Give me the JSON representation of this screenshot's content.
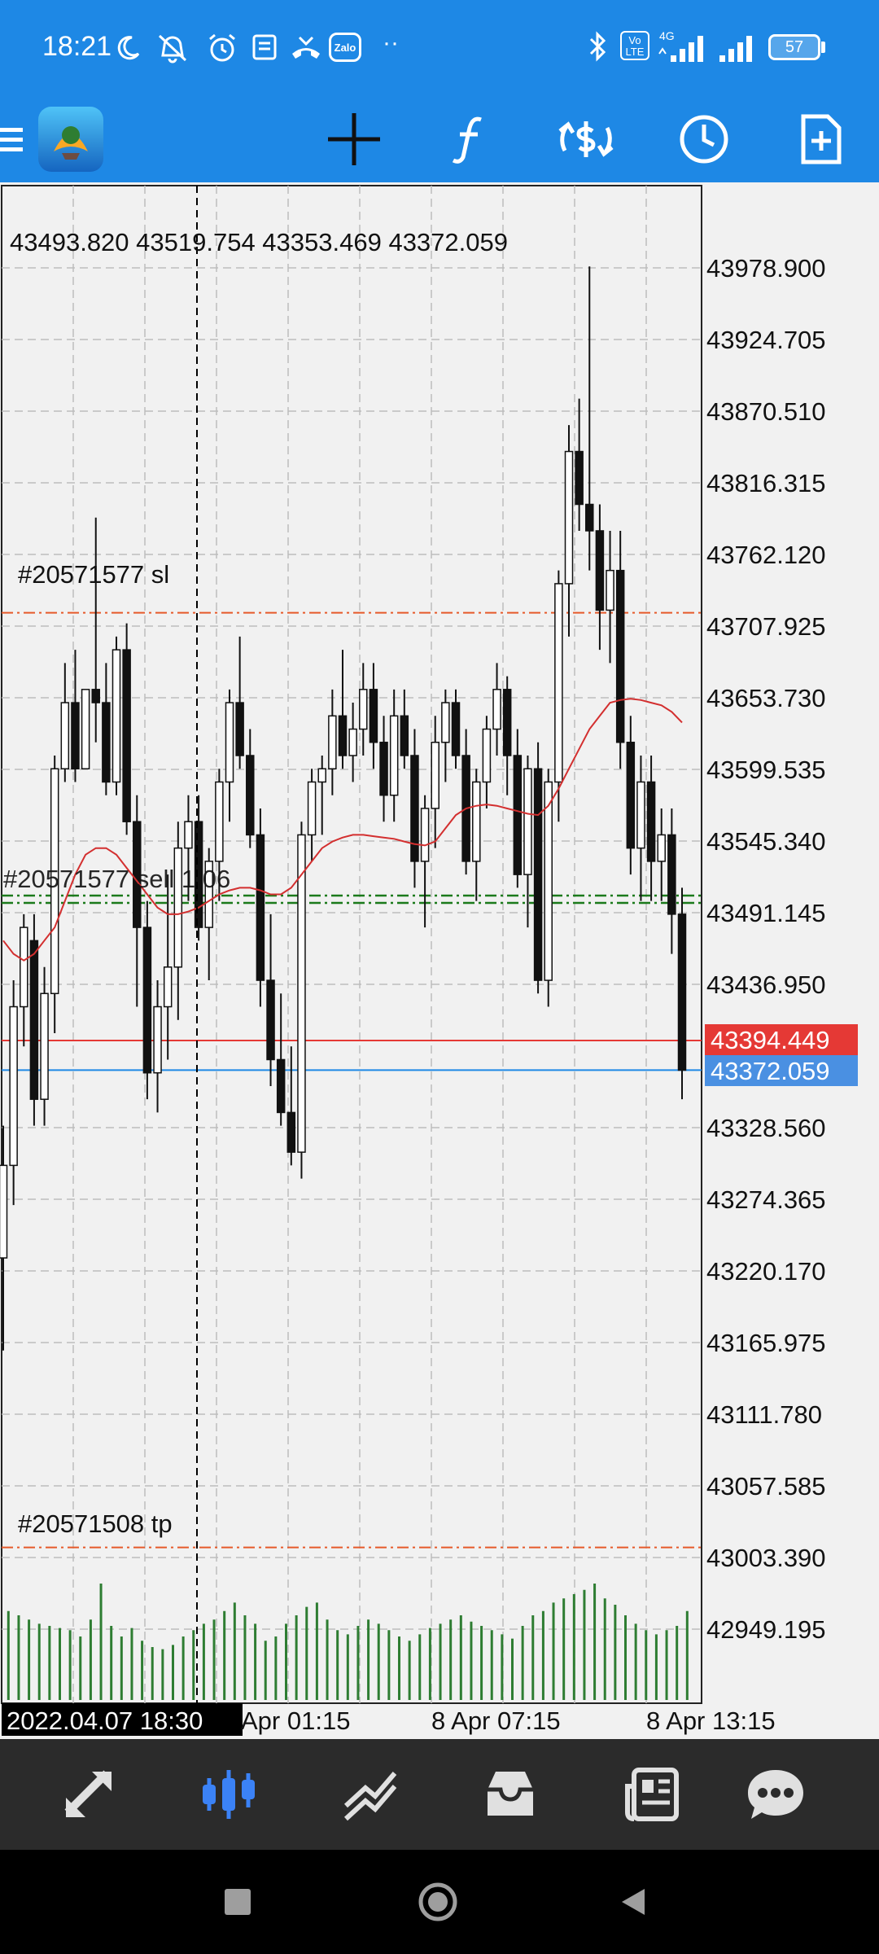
{
  "status_bar": {
    "time": "18:21",
    "notification_icons": [
      "moon-icon",
      "mute-icon",
      "alarm-icon",
      "note-icon",
      "missed-call-icon",
      "zalo-icon",
      "more-dots-icon"
    ],
    "zalo_label": "Zalo",
    "volte_label": "Vo LTE",
    "network_label": "4G",
    "battery": "57"
  },
  "toolbar": {
    "items": [
      "menu-icon",
      "app-logo",
      "crosshair-icon",
      "function-icon",
      "symbol-exchange-icon",
      "clock-icon",
      "new-order-icon"
    ]
  },
  "chart": {
    "ohlc_readout": "43493.820 43519.754 43353.469 43372.059",
    "price_ticks": [
      "43978.900",
      "43924.705",
      "43870.510",
      "43816.315",
      "43762.120",
      "43707.925",
      "43653.730",
      "43599.535",
      "43545.340",
      "43491.145",
      "43436.950",
      "43328.560",
      "43274.365",
      "43220.170",
      "43165.975",
      "43111.780",
      "43057.585",
      "43003.390",
      "42949.195"
    ],
    "bid_label": "43394.449",
    "last_label": "43372.059",
    "sl_label": "#20571577 sl",
    "order_label": "#20571577 sell 1.06",
    "tp_label": "#20571508 tp",
    "cursor_time": "2022.04.07 18:30",
    "time_labels": [
      "Apr 01:15",
      "8 Apr 07:15",
      "8 Apr 13:15"
    ],
    "colors": {
      "bid_line": "#e53935",
      "last_line": "#1e88e5",
      "last_box": "#4a90e2",
      "ma": "#d32f2f",
      "volume": "#2e7d32",
      "sl_tp": "#e65a2a",
      "order": "#1b7a1b"
    }
  },
  "chart_data": {
    "type": "candlestick",
    "title": "",
    "ylim": [
      42900,
      44010
    ],
    "y_ticks": [
      43978.9,
      43924.705,
      43870.51,
      43816.315,
      43762.12,
      43707.925,
      43653.73,
      43599.535,
      43545.34,
      43491.145,
      43436.95,
      43328.56,
      43274.365,
      43220.17,
      43165.975,
      43111.78,
      43057.585,
      43003.39,
      42949.195
    ],
    "last_price": 43372.059,
    "bid_price": 43394.449,
    "sl_price": 43718.0,
    "order_price": 43501.0,
    "tp_price": 43011.0,
    "candles": [
      [
        43230,
        43330,
        43160,
        43300
      ],
      [
        43300,
        43440,
        43270,
        43420
      ],
      [
        43420,
        43490,
        43390,
        43480
      ],
      [
        43470,
        43490,
        43330,
        43350
      ],
      [
        43350,
        43450,
        43330,
        43430
      ],
      [
        43430,
        43610,
        43400,
        43600
      ],
      [
        43600,
        43680,
        43590,
        43650
      ],
      [
        43650,
        43690,
        43590,
        43600
      ],
      [
        43600,
        43660,
        43600,
        43660
      ],
      [
        43660,
        43790,
        43620,
        43650
      ],
      [
        43650,
        43680,
        43580,
        43590
      ],
      [
        43590,
        43700,
        43580,
        43690
      ],
      [
        43690,
        43710,
        43550,
        43560
      ],
      [
        43560,
        43580,
        43420,
        43480
      ],
      [
        43480,
        43500,
        43350,
        43370
      ],
      [
        43370,
        43440,
        43340,
        43420
      ],
      [
        43420,
        43520,
        43380,
        43450
      ],
      [
        43450,
        43560,
        43410,
        43540
      ],
      [
        43540,
        43580,
        43500,
        43560
      ],
      [
        43560,
        43580,
        43470,
        43480
      ],
      [
        43480,
        43540,
        43440,
        43530
      ],
      [
        43530,
        43600,
        43500,
        43590
      ],
      [
        43590,
        43660,
        43560,
        43650
      ],
      [
        43650,
        43700,
        43600,
        43610
      ],
      [
        43610,
        43630,
        43540,
        43550
      ],
      [
        43550,
        43570,
        43420,
        43440
      ],
      [
        43440,
        43490,
        43360,
        43380
      ],
      [
        43380,
        43430,
        43330,
        43340
      ],
      [
        43340,
        43390,
        43300,
        43310
      ],
      [
        43310,
        43560,
        43290,
        43550
      ],
      [
        43550,
        43600,
        43530,
        43590
      ],
      [
        43590,
        43610,
        43550,
        43600
      ],
      [
        43600,
        43660,
        43580,
        43640
      ],
      [
        43640,
        43690,
        43600,
        43610
      ],
      [
        43610,
        43650,
        43590,
        43630
      ],
      [
        43630,
        43680,
        43610,
        43660
      ],
      [
        43660,
        43680,
        43600,
        43620
      ],
      [
        43620,
        43640,
        43560,
        43580
      ],
      [
        43580,
        43660,
        43560,
        43640
      ],
      [
        43640,
        43660,
        43600,
        43610
      ],
      [
        43610,
        43630,
        43510,
        43530
      ],
      [
        43530,
        43580,
        43480,
        43570
      ],
      [
        43570,
        43640,
        43540,
        43620
      ],
      [
        43620,
        43660,
        43590,
        43650
      ],
      [
        43650,
        43660,
        43600,
        43610
      ],
      [
        43610,
        43630,
        43520,
        43530
      ],
      [
        43530,
        43600,
        43500,
        43590
      ],
      [
        43590,
        43640,
        43570,
        43630
      ],
      [
        43630,
        43680,
        43610,
        43660
      ],
      [
        43660,
        43670,
        43580,
        43610
      ],
      [
        43610,
        43630,
        43510,
        43520
      ],
      [
        43520,
        43610,
        43480,
        43600
      ],
      [
        43600,
        43620,
        43430,
        43440
      ],
      [
        43440,
        43600,
        43420,
        43590
      ],
      [
        43590,
        43750,
        43560,
        43740
      ],
      [
        43740,
        43860,
        43700,
        43840
      ],
      [
        43840,
        43880,
        43780,
        43800
      ],
      [
        43800,
        43980,
        43750,
        43780
      ],
      [
        43780,
        43800,
        43690,
        43720
      ],
      [
        43720,
        43780,
        43680,
        43750
      ],
      [
        43750,
        43780,
        43600,
        43620
      ],
      [
        43620,
        43640,
        43520,
        43540
      ],
      [
        43540,
        43610,
        43500,
        43590
      ],
      [
        43590,
        43610,
        43500,
        43530
      ],
      [
        43530,
        43570,
        43500,
        43550
      ],
      [
        43550,
        43570,
        43460,
        43490
      ],
      [
        43490,
        43510,
        43350,
        43372
      ]
    ],
    "ma_values": [
      43470,
      43460,
      43455,
      43460,
      43470,
      43480,
      43500,
      43520,
      43535,
      43540,
      43540,
      43535,
      43525,
      43515,
      43505,
      43495,
      43490,
      43490,
      43492,
      43495,
      43500,
      43505,
      43508,
      43510,
      43510,
      43508,
      43505,
      43505,
      43510,
      43520,
      43530,
      43540,
      43545,
      43548,
      43550,
      43550,
      43549,
      43548,
      43547,
      43545,
      43543,
      43542,
      43545,
      43555,
      43565,
      43570,
      43572,
      43573,
      43572,
      43570,
      43568,
      43566,
      43565,
      43572,
      43585,
      43600,
      43615,
      43630,
      43640,
      43650,
      43652,
      43653,
      43652,
      43650,
      43648,
      43643,
      43635
    ],
    "volumes": [
      42,
      40,
      38,
      36,
      35,
      34,
      33,
      30,
      38,
      55,
      35,
      30,
      34,
      28,
      25,
      24,
      26,
      30,
      33,
      36,
      38,
      42,
      46,
      40,
      36,
      28,
      30,
      36,
      40,
      44,
      46,
      38,
      33,
      31,
      35,
      38,
      36,
      33,
      30,
      28,
      31,
      34,
      36,
      38,
      40,
      37,
      35,
      33,
      31,
      29,
      35,
      40,
      42,
      46,
      48,
      50,
      52,
      55,
      48,
      45,
      40,
      36,
      33,
      31,
      33,
      35,
      42
    ]
  }
}
